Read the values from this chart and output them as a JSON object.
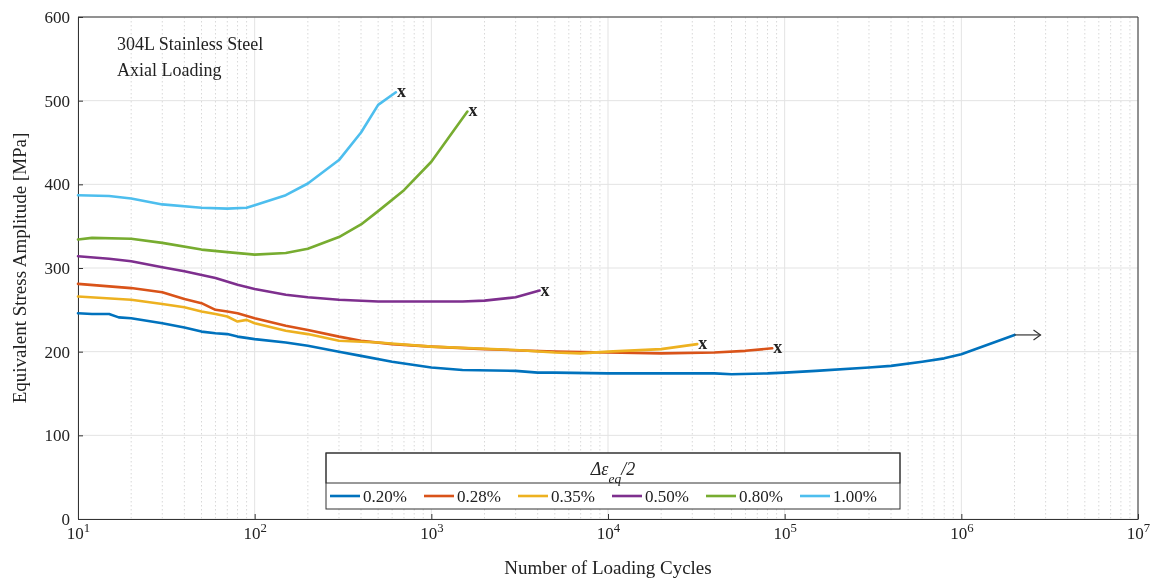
{
  "chart_data": {
    "type": "line",
    "xlabel": "Number of Loading Cycles",
    "ylabel": "Equivalent Stress Amplitude [MPa]",
    "legend_title": "Δε$_{eq}$/2",
    "legend": "bottom",
    "grid": true,
    "line_style": "solid",
    "log": "x",
    "xlim": [
      10,
      10000000
    ],
    "xticks": [
      {
        "value": 10,
        "label": "10$^{1}$"
      },
      {
        "value": 100,
        "label": "10$^{2}$"
      },
      {
        "value": 1000,
        "label": "10$^{3}$"
      },
      {
        "value": 10000,
        "label": "10$^{4}$"
      },
      {
        "value": 100000,
        "label": "10$^{5}$"
      },
      {
        "value": 1000000,
        "label": "10$^{6}$"
      },
      {
        "value": 10000000,
        "label": "10$^{7}$"
      }
    ],
    "ylim": [
      0,
      600
    ],
    "yticks": [
      0,
      100,
      200,
      300,
      400,
      500,
      600
    ],
    "annotations": [
      "304L Stainless Steel",
      "Axial Loading",
      {
        "text": "x",
        "x": 630,
        "y": 510
      },
      {
        "text": "x",
        "x": 1600,
        "y": 488
      },
      {
        "text": "x",
        "x": 4100,
        "y": 273
      },
      {
        "text": "x",
        "x": 32000,
        "y": 209
      },
      {
        "text": "x",
        "x": 85000,
        "y": 204
      }
    ],
    "series": [
      {
        "name": "0.20%",
        "color": "#0072bd",
        "x": [
          10,
          12,
          15,
          17,
          20,
          30,
          40,
          50,
          60,
          70,
          80,
          100,
          150,
          200,
          300,
          400,
          600,
          800,
          1000,
          1500,
          3000,
          4000,
          5000,
          10000,
          20000,
          40000,
          50000,
          80000,
          100000,
          150000,
          300000,
          400000,
          600000,
          800000,
          1000000,
          2000000
        ],
        "values": [
          246,
          245,
          245,
          241,
          240,
          234,
          229,
          224,
          222,
          221,
          218,
          215,
          211,
          207,
          200,
          195,
          188,
          184,
          181,
          178,
          177,
          175,
          175,
          174,
          174,
          174,
          173,
          174,
          175,
          177,
          181,
          183,
          188,
          192,
          197,
          220
        ]
      },
      {
        "name": "0.28%",
        "color": "#d95319",
        "x": [
          10,
          20,
          30,
          40,
          50,
          60,
          70,
          80,
          100,
          150,
          200,
          300,
          400,
          600,
          1000,
          2000,
          5000,
          10000,
          20000,
          40000,
          60000,
          85000
        ],
        "values": [
          281,
          276,
          271,
          263,
          258,
          250,
          248,
          246,
          240,
          231,
          226,
          218,
          213,
          209,
          206,
          203,
          200,
          199,
          198,
          199,
          201,
          204
        ]
      },
      {
        "name": "0.35%",
        "color": "#edb120",
        "x": [
          10,
          20,
          30,
          40,
          50,
          60,
          70,
          80,
          90,
          100,
          150,
          200,
          300,
          500,
          1000,
          3000,
          5000,
          7000,
          10000,
          20000,
          32000
        ],
        "values": [
          266,
          262,
          257,
          253,
          248,
          245,
          242,
          236,
          238,
          234,
          225,
          221,
          213,
          211,
          206,
          202,
          199,
          198,
          200,
          203,
          209
        ]
      },
      {
        "name": "0.50%",
        "color": "#7e2f8e",
        "x": [
          10,
          15,
          20,
          30,
          40,
          60,
          80,
          100,
          150,
          200,
          300,
          500,
          1000,
          1500,
          2000,
          3000,
          4100
        ],
        "values": [
          314,
          311,
          308,
          301,
          296,
          288,
          280,
          275,
          268,
          265,
          262,
          260,
          260,
          260,
          261,
          265,
          273
        ]
      },
      {
        "name": "0.80%",
        "color": "#77ac30",
        "x": [
          10,
          12,
          20,
          30,
          50,
          70,
          100,
          150,
          200,
          300,
          400,
          500,
          700,
          1000,
          1600
        ],
        "values": [
          334,
          336,
          335,
          330,
          322,
          319,
          316,
          318,
          323,
          337,
          352,
          368,
          393,
          427,
          487
        ]
      },
      {
        "name": "1.00%",
        "color": "#4dbeee",
        "x": [
          10,
          15,
          20,
          30,
          50,
          70,
          90,
          100,
          150,
          200,
          300,
          400,
          500,
          630
        ],
        "values": [
          387,
          386,
          383,
          376,
          372,
          371,
          372,
          375,
          387,
          401,
          429,
          462,
          495,
          510
        ]
      }
    ]
  }
}
